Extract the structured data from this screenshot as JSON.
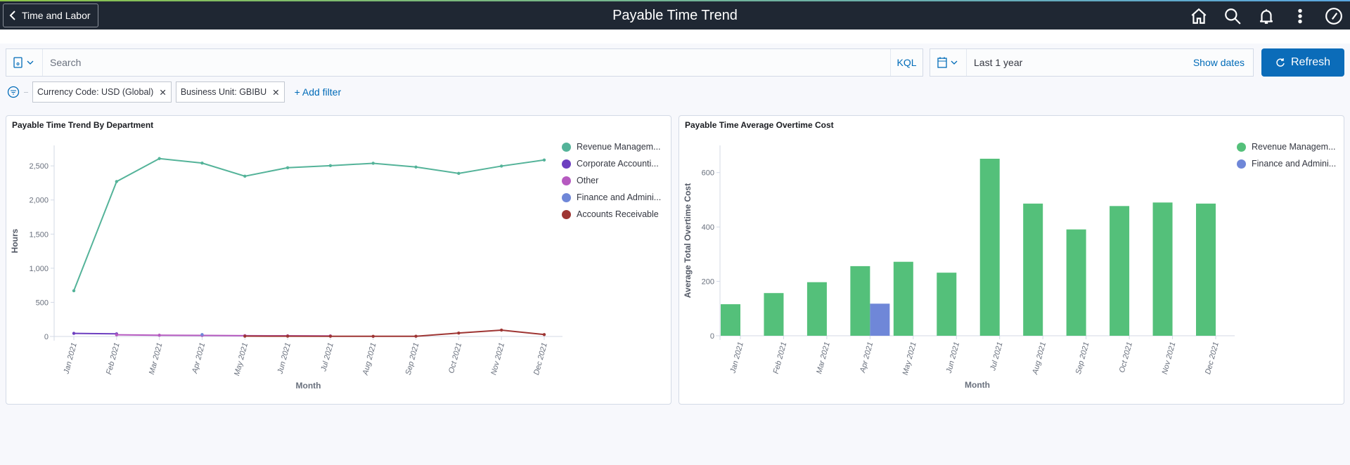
{
  "header": {
    "back_label": "Time and Labor",
    "title": "Payable Time Trend",
    "icons": [
      "home-icon",
      "search-icon",
      "bell-icon",
      "more-vertical-icon",
      "compass-icon"
    ]
  },
  "query": {
    "search_placeholder": "Search",
    "search_value": "",
    "kql_label": "KQL",
    "date_range": "Last 1 year",
    "show_dates_label": "Show dates",
    "refresh_label": "Refresh"
  },
  "filters": [
    {
      "label": "Currency Code: USD (Global)"
    },
    {
      "label": "Business Unit: GBIBU"
    }
  ],
  "add_filter_label": "+ Add filter",
  "colors": {
    "accent": "#0b6cb9",
    "header": "#1f2733"
  },
  "chart_data": [
    {
      "type": "line",
      "title": "Payable Time Trend By Department",
      "xlabel": "Month",
      "ylabel": "Hours",
      "ylim": [
        0,
        2800
      ],
      "yticks": [
        "0",
        "500",
        "1,000",
        "1,500",
        "2,000",
        "2,500"
      ],
      "categories": [
        "Jan 2021",
        "Feb 2021",
        "Mar 2021",
        "Apr 2021",
        "May 2021",
        "Jun 2021",
        "Jul 2021",
        "Aug 2021",
        "Sep 2021",
        "Oct 2021",
        "Nov 2021",
        "Dec 2021"
      ],
      "legend_position": "right",
      "series": [
        {
          "name": "Revenue Managem...",
          "color": "#54b399",
          "values": [
            670,
            2270,
            2607,
            2541,
            2349,
            2473,
            2503,
            2538,
            2483,
            2390,
            2497,
            2586
          ]
        },
        {
          "name": "Corporate Accounti...",
          "color": "#6d3fc0",
          "values": [
            45,
            38,
            null,
            null,
            null,
            null,
            null,
            null,
            null,
            null,
            null,
            null
          ]
        },
        {
          "name": "Other",
          "color": "#b65ac0",
          "values": [
            null,
            24,
            18,
            15,
            12,
            10,
            8,
            null,
            null,
            null,
            null,
            null
          ]
        },
        {
          "name": "Finance and Admini...",
          "color": "#6f87d8",
          "values": [
            null,
            null,
            null,
            28,
            null,
            null,
            null,
            null,
            null,
            null,
            null,
            null
          ]
        },
        {
          "name": "Accounts Receivable",
          "color": "#9e3533",
          "values": [
            null,
            null,
            null,
            null,
            5,
            4,
            3,
            2,
            3,
            50,
            93,
            28
          ]
        }
      ]
    },
    {
      "type": "bar",
      "title": "Payable Time Average Overtime Cost",
      "xlabel": "Month",
      "ylabel": "Average Total Overtime Cost",
      "ylim": [
        0,
        700
      ],
      "yticks": [
        "0",
        "200",
        "400",
        "600"
      ],
      "categories": [
        "Jan 2021",
        "Feb 2021",
        "Mar 2021",
        "Apr 2021",
        "May 2021",
        "Jun 2021",
        "Jul 2021",
        "Aug 2021",
        "Sep 2021",
        "Oct 2021",
        "Nov 2021",
        "Dec 2021"
      ],
      "legend_position": "right",
      "series": [
        {
          "name": "Revenue Managem...",
          "color": "#54c07a",
          "values": [
            116,
            157,
            197,
            256,
            272,
            232,
            651,
            486,
            391,
            477,
            490,
            486
          ]
        },
        {
          "name": "Finance and Admini...",
          "color": "#6f87d8",
          "values": [
            null,
            null,
            null,
            118,
            null,
            null,
            null,
            null,
            null,
            null,
            null,
            null
          ]
        }
      ]
    }
  ]
}
